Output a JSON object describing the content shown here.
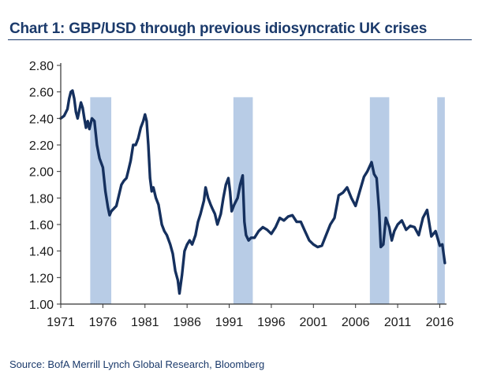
{
  "chart_data": {
    "type": "line",
    "title": "Chart 1: GBP/USD through previous idiosyncratic UK crises",
    "source": "Source: BofA Merrill Lynch Global Research, Bloomberg",
    "xlabel": "",
    "ylabel": "",
    "xlim": [
      1971,
      2016.8
    ],
    "ylim": [
      1.0,
      2.8
    ],
    "y_ticks": [
      "1.00",
      "1.20",
      "1.40",
      "1.60",
      "1.80",
      "2.00",
      "2.20",
      "2.40",
      "2.60",
      "2.80"
    ],
    "x_ticks": [
      "1971",
      "1976",
      "1981",
      "1986",
      "1991",
      "1996",
      "2001",
      "2006",
      "2011",
      "2016"
    ],
    "grid": false,
    "legend": "none",
    "colors": {
      "line": "#15305e",
      "shade": "#b8cce6",
      "axis": "#333333"
    },
    "crisis_periods": [
      [
        1974.5,
        1977.0
      ],
      [
        1991.5,
        1993.8
      ],
      [
        2007.7,
        2010.0
      ],
      [
        2015.7,
        2016.6
      ]
    ],
    "series": [
      {
        "points": [
          [
            1971.0,
            2.4
          ],
          [
            1971.4,
            2.42
          ],
          [
            1971.8,
            2.47
          ],
          [
            1972.0,
            2.55
          ],
          [
            1972.2,
            2.6
          ],
          [
            1972.4,
            2.61
          ],
          [
            1972.6,
            2.55
          ],
          [
            1972.8,
            2.45
          ],
          [
            1973.0,
            2.4
          ],
          [
            1973.2,
            2.46
          ],
          [
            1973.4,
            2.52
          ],
          [
            1973.6,
            2.48
          ],
          [
            1973.8,
            2.4
          ],
          [
            1974.0,
            2.33
          ],
          [
            1974.2,
            2.38
          ],
          [
            1974.4,
            2.32
          ],
          [
            1974.7,
            2.4
          ],
          [
            1975.0,
            2.38
          ],
          [
            1975.3,
            2.2
          ],
          [
            1975.6,
            2.1
          ],
          [
            1976.0,
            2.03
          ],
          [
            1976.3,
            1.85
          ],
          [
            1976.6,
            1.73
          ],
          [
            1976.8,
            1.67
          ],
          [
            1977.0,
            1.7
          ],
          [
            1977.3,
            1.72
          ],
          [
            1977.6,
            1.74
          ],
          [
            1977.9,
            1.82
          ],
          [
            1978.2,
            1.9
          ],
          [
            1978.5,
            1.93
          ],
          [
            1978.8,
            1.95
          ],
          [
            1979.0,
            2.0
          ],
          [
            1979.3,
            2.08
          ],
          [
            1979.6,
            2.2
          ],
          [
            1979.9,
            2.2
          ],
          [
            1980.2,
            2.25
          ],
          [
            1980.5,
            2.33
          ],
          [
            1980.8,
            2.38
          ],
          [
            1981.0,
            2.43
          ],
          [
            1981.2,
            2.38
          ],
          [
            1981.4,
            2.2
          ],
          [
            1981.6,
            1.95
          ],
          [
            1981.8,
            1.85
          ],
          [
            1982.0,
            1.88
          ],
          [
            1982.3,
            1.8
          ],
          [
            1982.6,
            1.75
          ],
          [
            1983.0,
            1.6
          ],
          [
            1983.3,
            1.55
          ],
          [
            1983.6,
            1.52
          ],
          [
            1984.0,
            1.45
          ],
          [
            1984.3,
            1.38
          ],
          [
            1984.6,
            1.25
          ],
          [
            1984.9,
            1.18
          ],
          [
            1985.1,
            1.08
          ],
          [
            1985.4,
            1.22
          ],
          [
            1985.7,
            1.4
          ],
          [
            1986.0,
            1.45
          ],
          [
            1986.3,
            1.48
          ],
          [
            1986.6,
            1.45
          ],
          [
            1987.0,
            1.52
          ],
          [
            1987.3,
            1.62
          ],
          [
            1987.6,
            1.68
          ],
          [
            1988.0,
            1.78
          ],
          [
            1988.2,
            1.88
          ],
          [
            1988.5,
            1.8
          ],
          [
            1988.8,
            1.75
          ],
          [
            1989.0,
            1.72
          ],
          [
            1989.3,
            1.68
          ],
          [
            1989.6,
            1.6
          ],
          [
            1990.0,
            1.68
          ],
          [
            1990.3,
            1.8
          ],
          [
            1990.6,
            1.9
          ],
          [
            1990.9,
            1.95
          ],
          [
            1991.1,
            1.85
          ],
          [
            1991.3,
            1.7
          ],
          [
            1991.6,
            1.75
          ],
          [
            1992.0,
            1.8
          ],
          [
            1992.3,
            1.9
          ],
          [
            1992.6,
            1.97
          ],
          [
            1992.8,
            1.62
          ],
          [
            1993.0,
            1.52
          ],
          [
            1993.3,
            1.48
          ],
          [
            1993.6,
            1.5
          ],
          [
            1994.0,
            1.5
          ],
          [
            1994.5,
            1.55
          ],
          [
            1995.0,
            1.58
          ],
          [
            1995.5,
            1.56
          ],
          [
            1996.0,
            1.53
          ],
          [
            1996.5,
            1.58
          ],
          [
            1997.0,
            1.65
          ],
          [
            1997.5,
            1.63
          ],
          [
            1998.0,
            1.66
          ],
          [
            1998.5,
            1.67
          ],
          [
            1999.0,
            1.62
          ],
          [
            1999.5,
            1.62
          ],
          [
            2000.0,
            1.55
          ],
          [
            2000.5,
            1.48
          ],
          [
            2001.0,
            1.45
          ],
          [
            2001.5,
            1.43
          ],
          [
            2002.0,
            1.44
          ],
          [
            2002.5,
            1.52
          ],
          [
            2003.0,
            1.6
          ],
          [
            2003.5,
            1.65
          ],
          [
            2004.0,
            1.82
          ],
          [
            2004.5,
            1.84
          ],
          [
            2005.0,
            1.88
          ],
          [
            2005.5,
            1.8
          ],
          [
            2006.0,
            1.74
          ],
          [
            2006.5,
            1.85
          ],
          [
            2007.0,
            1.96
          ],
          [
            2007.4,
            2.0
          ],
          [
            2007.9,
            2.07
          ],
          [
            2008.2,
            1.98
          ],
          [
            2008.5,
            1.95
          ],
          [
            2008.8,
            1.7
          ],
          [
            2009.0,
            1.43
          ],
          [
            2009.3,
            1.45
          ],
          [
            2009.6,
            1.65
          ],
          [
            2010.0,
            1.58
          ],
          [
            2010.3,
            1.48
          ],
          [
            2010.6,
            1.55
          ],
          [
            2011.0,
            1.6
          ],
          [
            2011.5,
            1.63
          ],
          [
            2012.0,
            1.56
          ],
          [
            2012.5,
            1.59
          ],
          [
            2013.0,
            1.58
          ],
          [
            2013.5,
            1.52
          ],
          [
            2014.0,
            1.65
          ],
          [
            2014.5,
            1.71
          ],
          [
            2015.0,
            1.51
          ],
          [
            2015.5,
            1.55
          ],
          [
            2016.0,
            1.44
          ],
          [
            2016.3,
            1.45
          ],
          [
            2016.6,
            1.31
          ]
        ]
      }
    ]
  }
}
